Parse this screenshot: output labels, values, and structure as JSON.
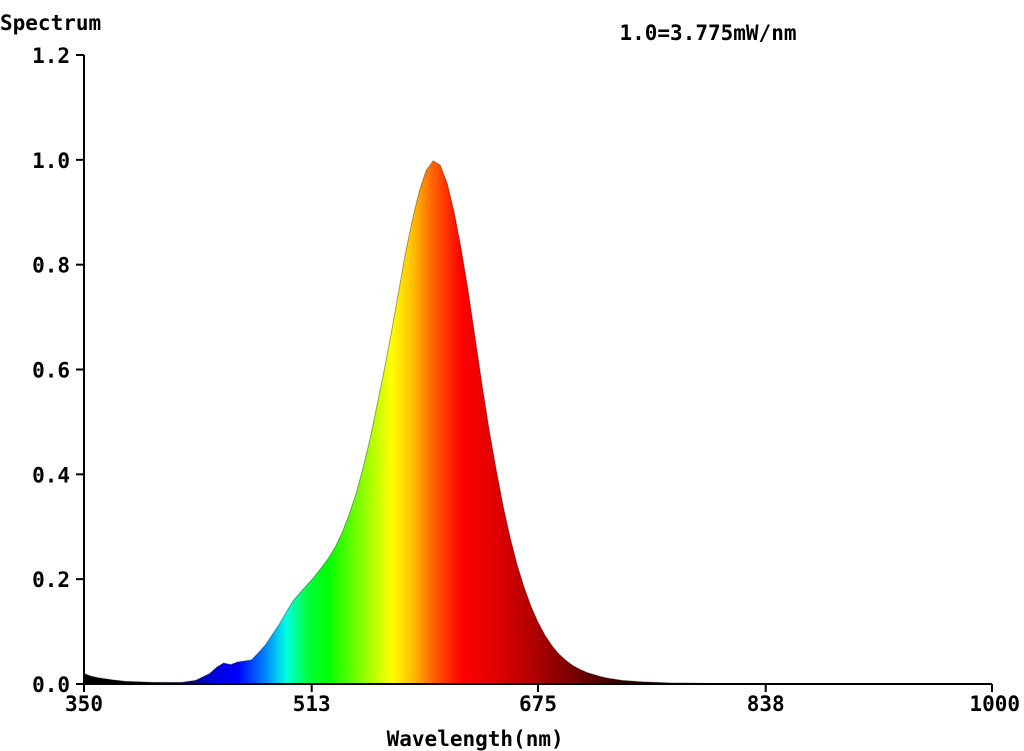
{
  "chart_data": {
    "type": "area",
    "title": "",
    "ylabel": "Spectrum",
    "xlabel": "Wavelength(nm)",
    "annotation": "1.0=3.775mW/nm",
    "xlim": [
      350,
      1000
    ],
    "ylim": [
      0,
      1.2
    ],
    "x_ticks": [
      350,
      513,
      675,
      838,
      1000
    ],
    "y_ticks": [
      0.0,
      0.2,
      0.4,
      0.6,
      0.8,
      1.0,
      1.2
    ],
    "y_tick_labels": [
      "0.0",
      "0.2",
      "0.4",
      "0.6",
      "0.8",
      "1.0",
      "1.2"
    ],
    "x_tick_labels": [
      "350",
      "513",
      "675",
      "838",
      "1000"
    ],
    "fill": "visible-spectrum-gradient",
    "grid": false,
    "series": [
      {
        "x": [
          350,
          355,
          360,
          370,
          380,
          400,
          420,
          430,
          440,
          445,
          450,
          455,
          460,
          465,
          470,
          475,
          480,
          485,
          490,
          495,
          500,
          505,
          510,
          515,
          520,
          525,
          530,
          535,
          540,
          545,
          550,
          555,
          560,
          565,
          570,
          575,
          580,
          585,
          590,
          595,
          600,
          605,
          610,
          615,
          620,
          625,
          630,
          635,
          640,
          645,
          650,
          655,
          660,
          665,
          670,
          675,
          680,
          685,
          690,
          695,
          700,
          705,
          710,
          715,
          720,
          725,
          730,
          735,
          740,
          750,
          760,
          770,
          780,
          800,
          820,
          840,
          860,
          880,
          900,
          950,
          1000
        ],
        "y": [
          0.02,
          0.015,
          0.012,
          0.008,
          0.005,
          0.003,
          0.003,
          0.007,
          0.02,
          0.032,
          0.04,
          0.037,
          0.042,
          0.044,
          0.046,
          0.06,
          0.075,
          0.095,
          0.115,
          0.138,
          0.16,
          0.175,
          0.19,
          0.205,
          0.222,
          0.24,
          0.262,
          0.29,
          0.325,
          0.365,
          0.415,
          0.47,
          0.535,
          0.6,
          0.67,
          0.745,
          0.82,
          0.885,
          0.94,
          0.98,
          0.998,
          0.99,
          0.955,
          0.9,
          0.83,
          0.75,
          0.66,
          0.57,
          0.485,
          0.41,
          0.34,
          0.28,
          0.228,
          0.185,
          0.148,
          0.118,
          0.093,
          0.073,
          0.057,
          0.045,
          0.035,
          0.028,
          0.022,
          0.018,
          0.014,
          0.011,
          0.009,
          0.007,
          0.006,
          0.004,
          0.003,
          0.002,
          0.002,
          0.001,
          0.001,
          0.001,
          0.001,
          0.001,
          0.0,
          0.0,
          0.0
        ]
      }
    ]
  }
}
